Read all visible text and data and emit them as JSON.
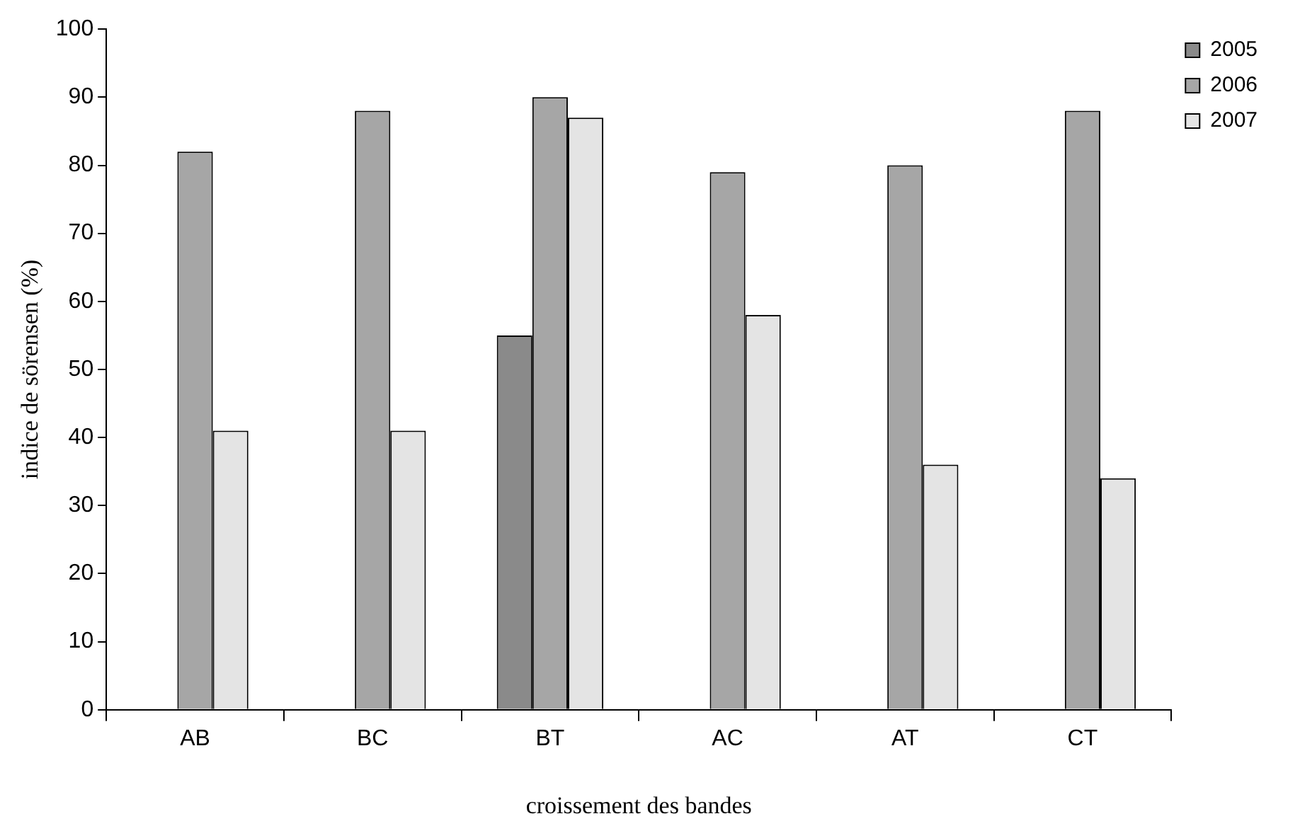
{
  "chart_data": {
    "type": "bar",
    "xlabel": "croissement des bandes",
    "ylabel": "indice de sörensen (%)",
    "categories": [
      "AB",
      "BC",
      "BT",
      "AC",
      "AT",
      "CT"
    ],
    "series": [
      {
        "name": "2005",
        "color": "#8a8a8a",
        "values": [
          null,
          null,
          55,
          null,
          null,
          null
        ]
      },
      {
        "name": "2006",
        "color": "#a6a6a6",
        "values": [
          82,
          88,
          90,
          79,
          80,
          88
        ]
      },
      {
        "name": "2007",
        "color": "#e4e4e4",
        "values": [
          41,
          41,
          87,
          58,
          36,
          34
        ]
      }
    ],
    "ylim": [
      0,
      100
    ],
    "yticks": [
      0,
      10,
      20,
      30,
      40,
      50,
      60,
      70,
      80,
      90,
      100
    ],
    "grid": false,
    "legend": "top right"
  }
}
